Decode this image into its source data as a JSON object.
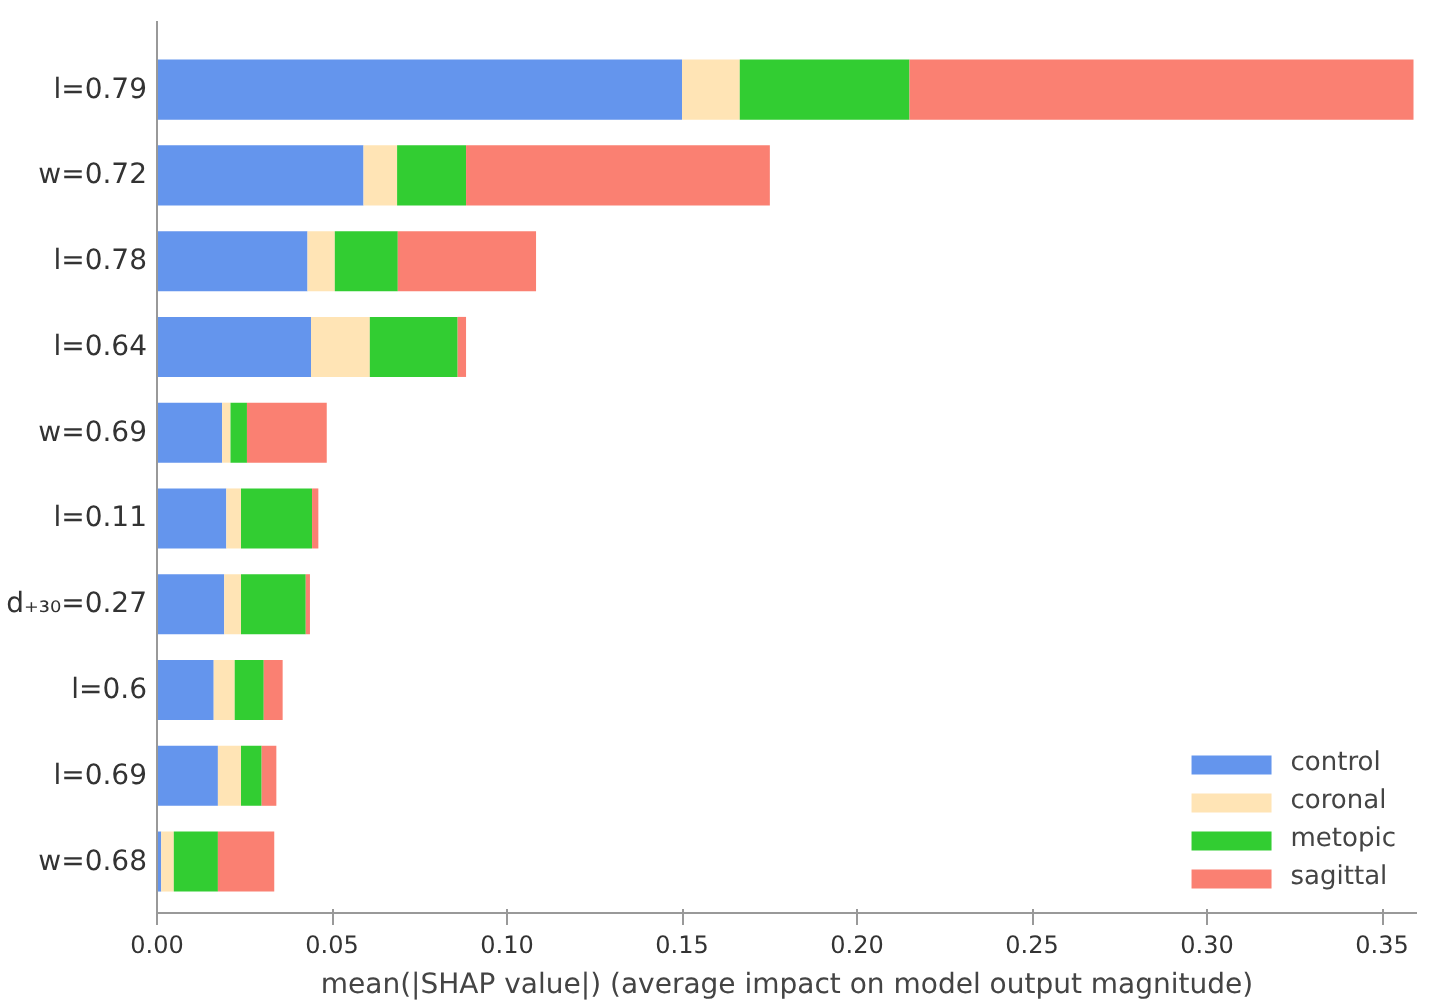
{
  "chart_data": {
    "type": "bar",
    "orientation": "horizontal",
    "stacked": true,
    "xlabel": "mean(|SHAP value|) (average impact on model output magnitude)",
    "categories": [
      "l=0.79",
      "w=0.72",
      "l=0.78",
      "l=0.64",
      "w=0.69",
      "l=0.11",
      "d₊₃₀=0.27",
      "l=0.6",
      "l=0.69",
      "w=0.68"
    ],
    "series": [
      {
        "name": "control",
        "color": "#6495ed",
        "values": [
          0.15,
          0.059,
          0.043,
          0.044,
          0.0186,
          0.0198,
          0.0192,
          0.0162,
          0.0174,
          0.0012
        ]
      },
      {
        "name": "coronal",
        "color": "#ffe4b5",
        "values": [
          0.0165,
          0.0096,
          0.0078,
          0.0168,
          0.0024,
          0.0042,
          0.0048,
          0.006,
          0.0066,
          0.0036
        ]
      },
      {
        "name": "metopic",
        "color": "#32cd32",
        "values": [
          0.0485,
          0.0197,
          0.018,
          0.0251,
          0.0047,
          0.0203,
          0.0185,
          0.0083,
          0.0059,
          0.0126
        ]
      },
      {
        "name": "sagittal",
        "color": "#fa8072",
        "values": [
          0.144,
          0.0868,
          0.0395,
          0.0024,
          0.0228,
          0.0018,
          0.0012,
          0.0054,
          0.0042,
          0.0161
        ]
      }
    ],
    "xlim": [
      0,
      0.36
    ],
    "xticks": [
      {
        "value": 0,
        "label": "0.00"
      },
      0.05,
      {
        "value": 0.1,
        "label": "0.10"
      },
      0.15,
      {
        "value": 0.2,
        "label": "0.20"
      },
      0.25,
      {
        "value": 0.3,
        "label": "0.30"
      },
      0.35
    ],
    "legend": "bottom right",
    "grid": false
  }
}
